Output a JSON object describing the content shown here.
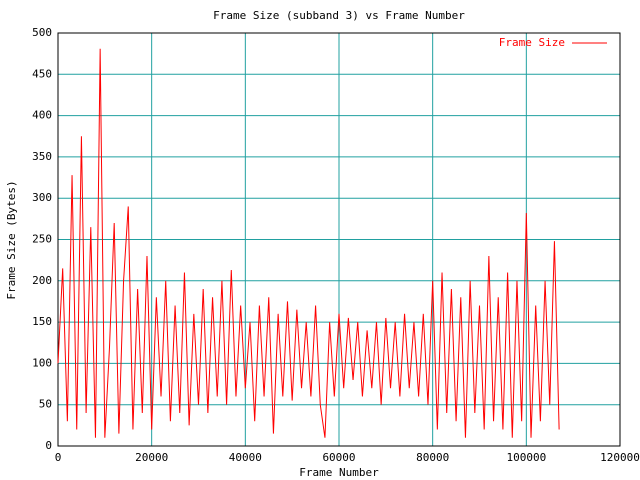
{
  "chart_data": {
    "type": "line",
    "title": "Frame Size (subband 3) vs Frame Number",
    "xlabel": "Frame Number",
    "ylabel": "Frame Size (Bytes)",
    "x": [
      0,
      1000,
      2000,
      3000,
      4000,
      5000,
      6000,
      7000,
      8000,
      9000,
      10000,
      11000,
      12000,
      13000,
      14000,
      15000,
      16000,
      17000,
      18000,
      19000,
      20000,
      21000,
      22000,
      23000,
      24000,
      25000,
      26000,
      27000,
      28000,
      29000,
      30000,
      31000,
      32000,
      33000,
      34000,
      35000,
      36000,
      37000,
      38000,
      39000,
      40000,
      41000,
      42000,
      43000,
      44000,
      45000,
      46000,
      47000,
      48000,
      49000,
      50000,
      51000,
      52000,
      53000,
      54000,
      55000,
      56000,
      57000,
      58000,
      59000,
      60000,
      61000,
      62000,
      63000,
      64000,
      65000,
      66000,
      67000,
      68000,
      69000,
      70000,
      71000,
      72000,
      73000,
      74000,
      75000,
      76000,
      77000,
      78000,
      79000,
      80000,
      81000,
      82000,
      83000,
      84000,
      85000,
      86000,
      87000,
      88000,
      89000,
      90000,
      91000,
      92000,
      93000,
      94000,
      95000,
      96000,
      97000,
      98000,
      99000,
      100000,
      101000,
      102000,
      103000,
      104000,
      105000,
      106000,
      107000
    ],
    "series": [
      {
        "name": "Frame Size",
        "color": "#ff0000",
        "values": [
          100,
          215,
          30,
          328,
          20,
          375,
          40,
          265,
          10,
          481,
          10,
          120,
          270,
          15,
          200,
          290,
          20,
          190,
          40,
          230,
          20,
          180,
          60,
          200,
          30,
          170,
          40,
          210,
          25,
          160,
          50,
          190,
          40,
          180,
          60,
          200,
          50,
          213,
          60,
          170,
          70,
          150,
          30,
          170,
          60,
          180,
          15,
          160,
          60,
          175,
          55,
          165,
          70,
          150,
          60,
          170,
          50,
          10,
          150,
          60,
          160,
          70,
          155,
          80,
          150,
          60,
          140,
          70,
          150,
          50,
          155,
          70,
          150,
          60,
          160,
          70,
          150,
          60,
          160,
          50,
          200,
          20,
          210,
          40,
          190,
          30,
          180,
          10,
          200,
          40,
          170,
          20,
          230,
          30,
          180,
          20,
          210,
          10,
          200,
          30,
          282,
          10,
          170,
          30,
          200,
          50,
          248,
          20
        ]
      }
    ],
    "xlim": [
      0,
      120000
    ],
    "ylim": [
      0,
      500
    ],
    "xticks": [
      0,
      20000,
      40000,
      60000,
      80000,
      100000,
      120000
    ],
    "yticks": [
      0,
      50,
      100,
      150,
      200,
      250,
      300,
      350,
      400,
      450,
      500
    ],
    "grid": true,
    "legend": "top-right"
  }
}
